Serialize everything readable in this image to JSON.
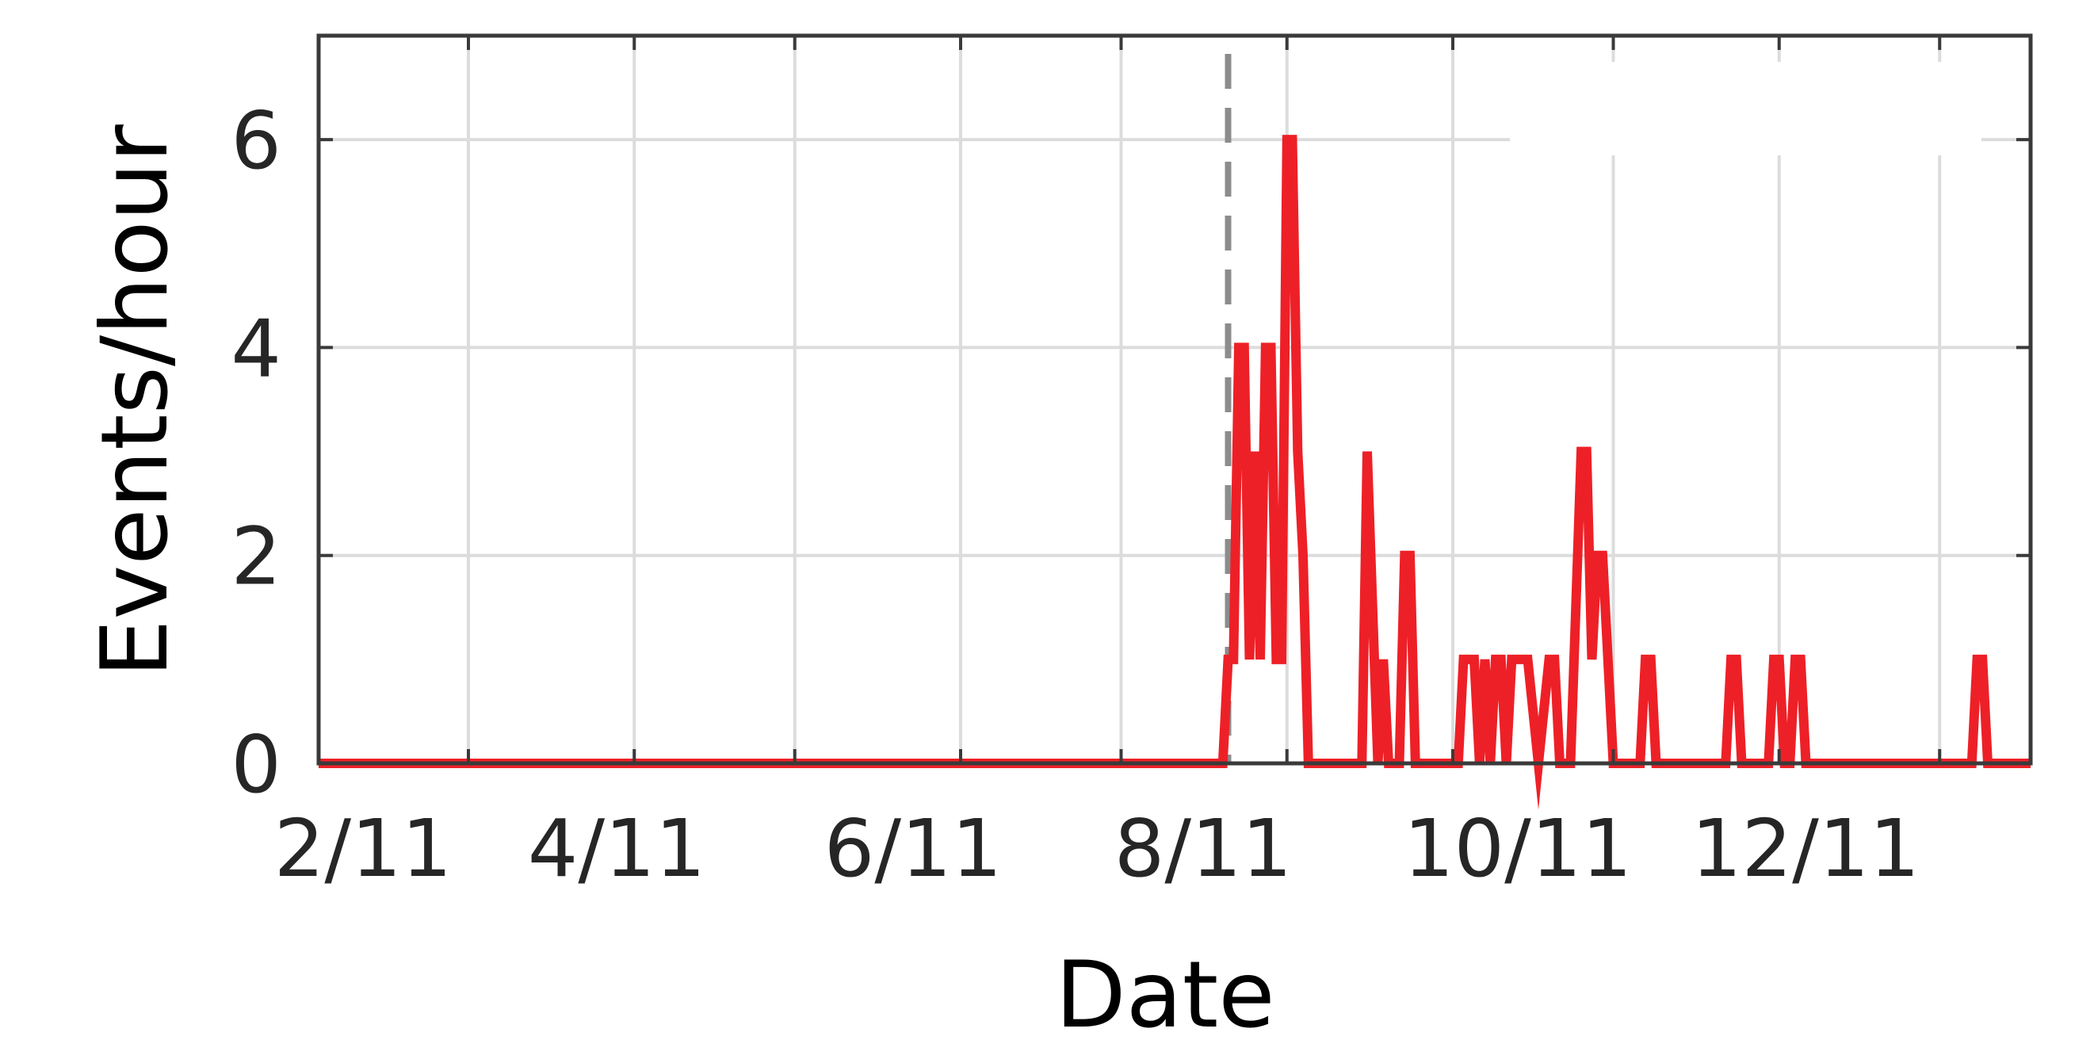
{
  "chart_data": {
    "type": "line",
    "title": "",
    "xlabel": "Date",
    "ylabel": "Events/hour",
    "xlim": [
      "2/11",
      "12/28"
    ],
    "ylim": [
      0,
      7
    ],
    "x_tick_labels": [
      "2/11",
      "4/11",
      "6/11",
      "8/11",
      "10/11",
      "12/11"
    ],
    "y_tick_labels": [
      "0",
      "2",
      "4",
      "6"
    ],
    "y_ticks": [
      0,
      2,
      4,
      6
    ],
    "grid": true,
    "vertical_marker": {
      "x": "7/31",
      "style": "dashed",
      "color": "#8c8c8c"
    },
    "series": [
      {
        "color": "#ee2027",
        "points": [
          [
            "2/11",
            0
          ],
          [
            "7/30",
            0
          ],
          [
            "7/31",
            1
          ],
          [
            "8/1",
            1
          ],
          [
            "8/2",
            4
          ],
          [
            "8/3",
            4
          ],
          [
            "8/4",
            1
          ],
          [
            "8/5",
            3
          ],
          [
            "8/6",
            1
          ],
          [
            "8/7",
            4
          ],
          [
            "8/8",
            4
          ],
          [
            "8/9",
            1
          ],
          [
            "8/10",
            1
          ],
          [
            "8/11",
            6
          ],
          [
            "8/12",
            6
          ],
          [
            "8/13",
            3
          ],
          [
            "8/14",
            2
          ],
          [
            "8/15",
            0
          ],
          [
            "8/25",
            0
          ],
          [
            "8/26",
            3
          ],
          [
            "8/28",
            0
          ],
          [
            "8/29",
            1
          ],
          [
            "8/30",
            0
          ],
          [
            "9/1",
            0
          ],
          [
            "9/2",
            2
          ],
          [
            "9/3",
            2
          ],
          [
            "9/4",
            0
          ],
          [
            "9/12",
            0
          ],
          [
            "9/13",
            1
          ],
          [
            "9/15",
            1
          ],
          [
            "9/16",
            0
          ],
          [
            "9/17",
            1
          ],
          [
            "9/18",
            0
          ],
          [
            "9/19",
            1
          ],
          [
            "9/20",
            1
          ],
          [
            "9/21",
            0
          ],
          [
            "9/22",
            1
          ],
          [
            "9/25",
            1
          ],
          [
            "9/27",
            0
          ],
          [
            "9/29",
            1
          ],
          [
            "9/30",
            1
          ],
          [
            "10/1",
            0
          ],
          [
            "10/3",
            0
          ],
          [
            "10/5",
            3
          ],
          [
            "10/6",
            3
          ],
          [
            "10/7",
            1
          ],
          [
            "10/8",
            2
          ],
          [
            "10/9",
            2
          ],
          [
            "10/11",
            0
          ],
          [
            "10/16",
            0
          ],
          [
            "10/17",
            1
          ],
          [
            "10/18",
            1
          ],
          [
            "10/19",
            0
          ],
          [
            "11/1",
            0
          ],
          [
            "11/2",
            1
          ],
          [
            "11/3",
            1
          ],
          [
            "11/4",
            0
          ],
          [
            "11/9",
            0
          ],
          [
            "11/10",
            1
          ],
          [
            "11/11",
            1
          ],
          [
            "11/12",
            0
          ],
          [
            "11/13",
            0
          ],
          [
            "11/14",
            1
          ],
          [
            "11/15",
            1
          ],
          [
            "11/16",
            0
          ],
          [
            "12/17",
            0
          ],
          [
            "12/18",
            1
          ],
          [
            "12/19",
            1
          ],
          [
            "12/20",
            0
          ],
          [
            "12/28",
            0
          ]
        ]
      }
    ]
  }
}
